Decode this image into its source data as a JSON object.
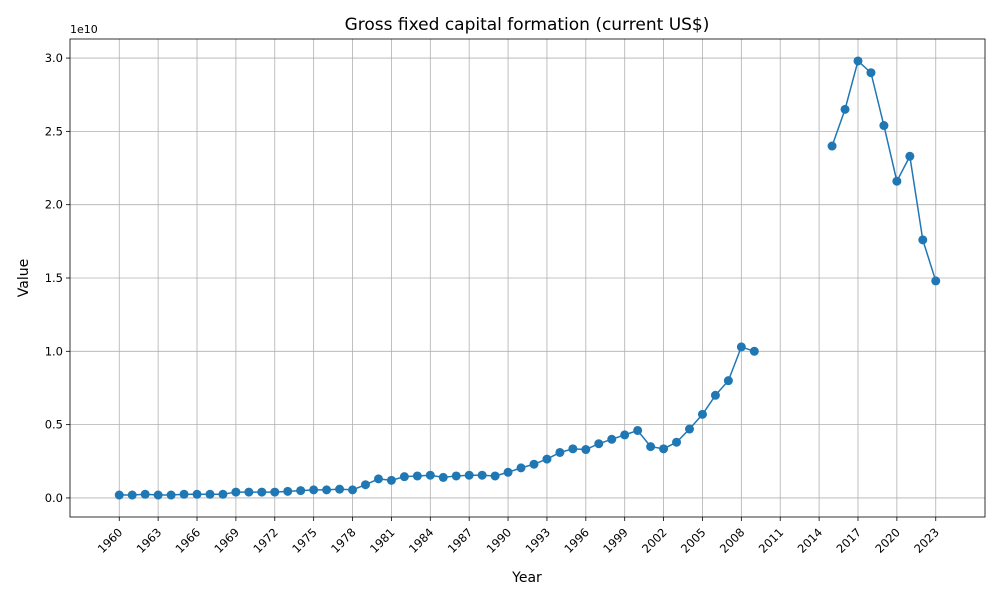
{
  "chart_data": {
    "type": "line",
    "title": "Gross fixed capital formation (current US$)",
    "xlabel": "Year",
    "ylabel": "Value",
    "y_offset_text": "1e10",
    "xlim": [
      1956.2,
      2026.8
    ],
    "ylim": [
      -0.13,
      3.13
    ],
    "y_scale_factor": 10000000000,
    "x_ticks": [
      1960,
      1963,
      1966,
      1969,
      1972,
      1975,
      1978,
      1981,
      1984,
      1987,
      1990,
      1993,
      1996,
      1999,
      2002,
      2005,
      2008,
      2011,
      2014,
      2017,
      2020,
      2023
    ],
    "y_ticks": [
      "0.0",
      "0.5",
      "1.0",
      "1.5",
      "2.0",
      "2.5",
      "3.0"
    ],
    "grid": true,
    "marker": "circle",
    "series": [
      {
        "color": "#1f77b4",
        "x": [
          1960,
          1961,
          1962,
          1963,
          1964,
          1965,
          1966,
          1967,
          1968,
          1969,
          1970,
          1971,
          1972,
          1973,
          1974,
          1975,
          1976,
          1977,
          1978,
          1979,
          1980,
          1981,
          1982,
          1983,
          1984,
          1985,
          1986,
          1987,
          1988,
          1989,
          1990,
          1991,
          1992,
          1993,
          1994,
          1995,
          1996,
          1997,
          1998,
          1999,
          2000,
          2001,
          2002,
          2003,
          2004,
          2005,
          2006,
          2007,
          2008,
          2009,
          2010,
          2011,
          2012,
          2013,
          2014,
          2015,
          2016,
          2017,
          2018,
          2019,
          2020,
          2021,
          2022,
          2023
        ],
        "y": [
          0.02,
          0.02,
          0.025,
          0.02,
          0.02,
          0.025,
          0.025,
          0.025,
          0.025,
          0.04,
          0.04,
          0.04,
          0.04,
          0.045,
          0.05,
          0.055,
          0.055,
          0.06,
          0.055,
          0.09,
          0.13,
          0.12,
          0.145,
          0.15,
          0.155,
          0.14,
          0.15,
          0.155,
          0.155,
          0.15,
          0.175,
          0.205,
          0.23,
          0.265,
          0.31,
          0.335,
          0.33,
          0.37,
          0.4,
          0.43,
          0.46,
          0.35,
          0.335,
          0.38,
          0.47,
          0.57,
          0.7,
          0.8,
          1.03,
          1.0,
          null,
          null,
          null,
          null,
          null,
          2.4,
          2.65,
          2.98,
          2.9,
          2.54,
          2.16,
          2.33,
          1.76,
          1.48
        ]
      }
    ]
  }
}
